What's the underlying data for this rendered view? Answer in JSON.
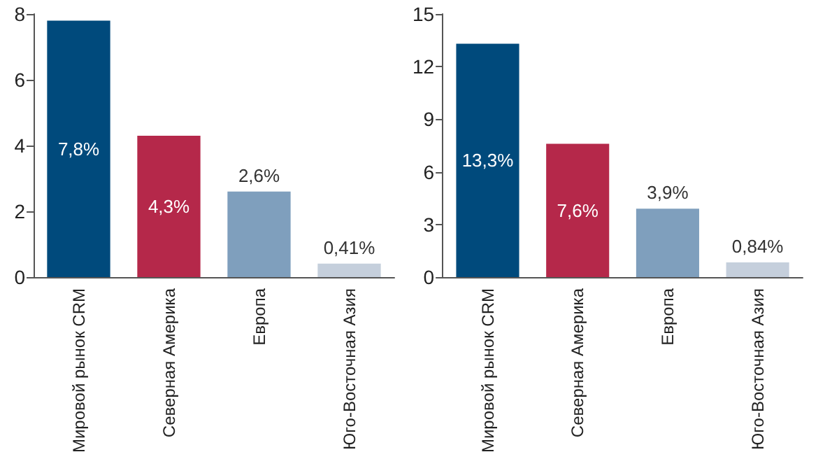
{
  "chart_data": [
    {
      "type": "bar",
      "categories": [
        "Мировой рынок CRM",
        "Северная Америка",
        "Европа",
        "Юго-Восточная Азия"
      ],
      "values": [
        7.8,
        4.3,
        2.6,
        0.41
      ],
      "colors": [
        "#004a7c",
        "#b5284a",
        "#7f9fbd",
        "#c5cfdc"
      ],
      "value_labels": [
        "7,8%",
        "4,3%",
        "2,6%",
        "0,41%"
      ],
      "ylim": [
        0,
        8
      ],
      "yticks": [
        0,
        2,
        4,
        6,
        8
      ],
      "grid": false
    },
    {
      "type": "bar",
      "categories": [
        "Мировой рынок CRM",
        "Северная Америка",
        "Европа",
        "Юго-Восточная Азия"
      ],
      "values": [
        13.3,
        7.6,
        3.9,
        0.84
      ],
      "colors": [
        "#004a7c",
        "#b5284a",
        "#7f9fbd",
        "#c5cfdc"
      ],
      "value_labels": [
        "13,3%",
        "7,6%",
        "3,9%",
        "0,84%"
      ],
      "ylim": [
        0,
        15
      ],
      "yticks": [
        0,
        3,
        6,
        9,
        12,
        15
      ],
      "grid": false
    }
  ]
}
